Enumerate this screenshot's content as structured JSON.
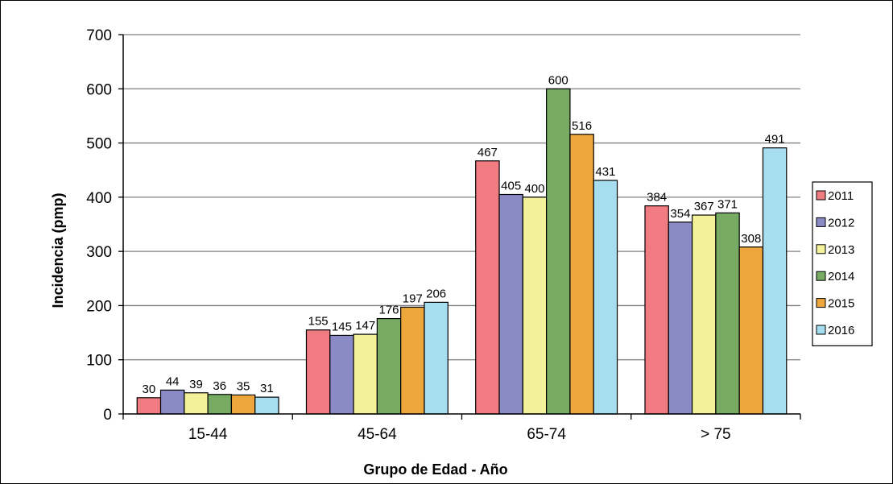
{
  "chart_data": {
    "type": "bar",
    "title": "",
    "xlabel": "Grupo de Edad - Año",
    "ylabel": "Incidencia (pmp)",
    "ylim": [
      0,
      700
    ],
    "yticks": [
      0,
      100,
      200,
      300,
      400,
      500,
      600,
      700
    ],
    "grid": true,
    "legend_position": "right",
    "categories": [
      "15-44",
      "45-64",
      "65-74",
      "> 75"
    ],
    "series": [
      {
        "name": "2011",
        "color": "#F07B80",
        "values": [
          30,
          155,
          467,
          384
        ]
      },
      {
        "name": "2012",
        "color": "#8A8AC6",
        "values": [
          44,
          145,
          405,
          354
        ]
      },
      {
        "name": "2013",
        "color": "#F3F29A",
        "values": [
          39,
          147,
          400,
          367
        ]
      },
      {
        "name": "2014",
        "color": "#77AA62",
        "values": [
          36,
          176,
          600,
          371
        ]
      },
      {
        "name": "2015",
        "color": "#EDA73C",
        "values": [
          35,
          197,
          516,
          308
        ]
      },
      {
        "name": "2016",
        "color": "#A6DEF0",
        "values": [
          31,
          206,
          431,
          491
        ]
      }
    ]
  }
}
